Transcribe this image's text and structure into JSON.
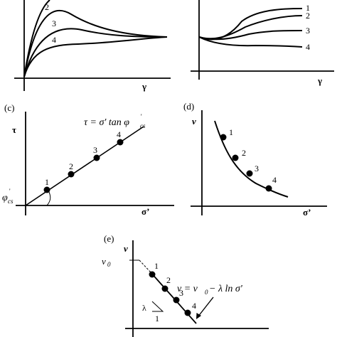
{
  "panel_a": {
    "x_axis_label": "γ",
    "curve_labels": [
      "2",
      "3",
      "4"
    ]
  },
  "panel_b": {
    "x_axis_label": "γ",
    "curve_labels": [
      "1",
      "2",
      "3",
      "4"
    ]
  },
  "panel_c": {
    "panel_label": "(c)",
    "y_axis_label": "τ",
    "x_axis_label": "σ’",
    "equation": "τ = σ' tan φ",
    "equation_sub": "cs",
    "equation_prime": "'",
    "angle_symbol": "φ",
    "angle_sub": "cs",
    "angle_prime": "'",
    "point_labels": [
      "1",
      "2",
      "3",
      "4"
    ]
  },
  "panel_d": {
    "panel_label": "(d)",
    "y_axis_label": "v",
    "x_axis_label": "σ’",
    "point_labels": [
      "1",
      "2",
      "3",
      "4"
    ]
  },
  "panel_e": {
    "panel_label": "(e)",
    "y_axis_label": "v",
    "v0_label": "v",
    "v0_sub": "0",
    "equation_lhs": "v = v",
    "equation_sub": "0",
    "equation_rhs": " − λ ln σ'",
    "slope_label": "λ",
    "slope_run": "1",
    "point_labels": [
      "1",
      "2",
      "3",
      "4"
    ]
  }
}
